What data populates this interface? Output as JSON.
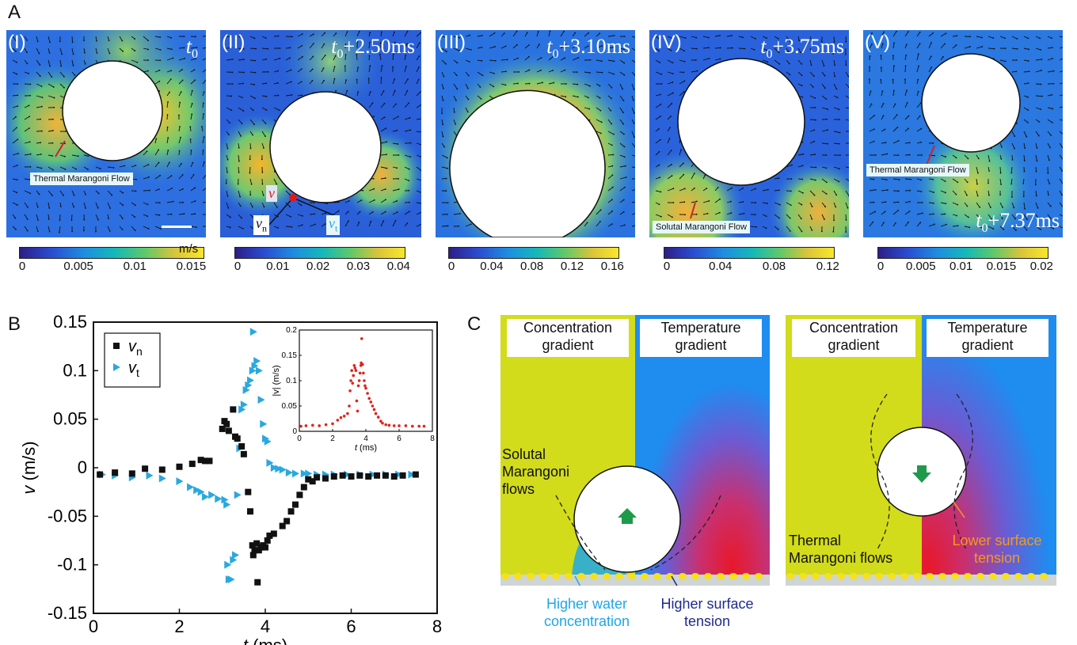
{
  "panel_labels": {
    "a": "A",
    "b": "B",
    "c": "C"
  },
  "panel_a": {
    "frames": [
      {
        "roman": "(I)",
        "time_base": "t",
        "time_sub": "0",
        "time_suffix": ""
      },
      {
        "roman": "(II)",
        "time_base": "t",
        "time_sub": "0",
        "time_suffix": "+2.50ms"
      },
      {
        "roman": "(III)",
        "time_base": "t",
        "time_sub": "0",
        "time_suffix": "+3.10ms"
      },
      {
        "roman": "(IV)",
        "time_base": "t",
        "time_sub": "0",
        "time_suffix": "+3.75ms"
      },
      {
        "roman": "(V)",
        "time_base": "t",
        "time_sub": "0",
        "time_suffix": "+7.37ms"
      }
    ],
    "callouts": {
      "thermal_1": "Thermal Marangoni Flow",
      "solutal": "Solutal Marangoni Flow",
      "thermal_5": "Thermal Marangoni Flow"
    },
    "vector_labels": {
      "v": "v",
      "vn_base": "v",
      "vn_sub": "n",
      "vt_base": "v",
      "vt_sub": "t"
    },
    "colorbar_unit": "m/s",
    "colorbars": [
      {
        "ticks": [
          "0",
          "0.005",
          "0.01",
          "0.015"
        ]
      },
      {
        "ticks": [
          "0",
          "0.01",
          "0.02",
          "0.03",
          "0.04"
        ]
      },
      {
        "ticks": [
          "0",
          "0.04",
          "0.08",
          "0.12",
          "0.16"
        ]
      },
      {
        "ticks": [
          "0",
          "0.04",
          "0.08",
          "0.12"
        ]
      },
      {
        "ticks": [
          "0",
          "0.005",
          "0.01",
          "0.015",
          "0.02"
        ]
      }
    ]
  },
  "panel_b": {
    "xlabel_var": "t",
    "xlabel_unit": " (ms)",
    "ylabel_var": "v",
    "ylabel_unit": " (m/s)",
    "legend": [
      {
        "base": "v",
        "sub": "n"
      },
      {
        "base": "v",
        "sub": "t"
      }
    ],
    "inset": {
      "xlabel_var": "t",
      "xlabel_unit": " (ms)",
      "ylabel": "|v| (m/s)"
    }
  },
  "panel_c": {
    "left": {
      "header_left": [
        "Concentration",
        "gradient"
      ],
      "header_right": [
        "Temperature",
        "gradient"
      ],
      "flow_label": [
        "Solutal",
        "Marangoni",
        "flows"
      ],
      "bottom_left": [
        "Higher water",
        "concentration"
      ],
      "bottom_right": [
        "Higher surface",
        "tension"
      ]
    },
    "right": {
      "header_left": [
        "Concentration",
        "gradient"
      ],
      "header_right": [
        "Temperature",
        "gradient"
      ],
      "flow_label": [
        "Thermal",
        "Marangoni flows"
      ],
      "tension_label": [
        "Lower surface",
        "tension"
      ]
    }
  },
  "colors": {
    "vn_marker": "#111111",
    "vt_marker": "#29a8e0",
    "inset_marker": "#e0231c",
    "c_yellow": "#d2dc1a",
    "c_blue": "#1f8cf0",
    "c_hot": "#e01a2a",
    "light_blue_text": "#1fa6e6",
    "dark_blue_text": "#1e2a8c",
    "orange_text": "#f39a1e",
    "arrow_green": "#1e9a4a"
  },
  "chart_data": [
    {
      "type": "scatter",
      "title": "",
      "xlabel": "t (ms)",
      "ylabel": "v (m/s)",
      "xlim": [
        0,
        8
      ],
      "ylim": [
        -0.15,
        0.15
      ],
      "xticks": [
        0,
        2,
        4,
        6,
        8
      ],
      "yticks": [
        -0.15,
        -0.1,
        -0.05,
        0,
        0.05,
        0.1,
        0.15
      ],
      "ytick_labels": [
        "-0.15",
        "-0.1",
        "-0.05",
        "0",
        "0.05",
        "0.1",
        "0.15"
      ],
      "legend_position": "top-left",
      "series": [
        {
          "name": "vn",
          "marker": "square",
          "points": [
            [
              0.15,
              -0.007
            ],
            [
              0.5,
              -0.005
            ],
            [
              0.9,
              -0.006
            ],
            [
              1.2,
              -0.001
            ],
            [
              1.6,
              -0.002
            ],
            [
              2.0,
              0.001
            ],
            [
              2.3,
              0.004
            ],
            [
              2.5,
              0.008
            ],
            [
              2.6,
              0.007
            ],
            [
              2.7,
              0.007
            ],
            [
              3.0,
              0.04
            ],
            [
              3.05,
              0.048
            ],
            [
              3.1,
              0.045
            ],
            [
              3.15,
              0.038
            ],
            [
              3.25,
              0.06
            ],
            [
              3.3,
              0.032
            ],
            [
              3.35,
              0.03
            ],
            [
              3.45,
              0.022
            ],
            [
              3.5,
              0.014
            ],
            [
              3.6,
              -0.025
            ],
            [
              3.65,
              -0.045
            ],
            [
              3.7,
              -0.08
            ],
            [
              3.72,
              -0.09
            ],
            [
              3.75,
              -0.085
            ],
            [
              3.8,
              -0.078
            ],
            [
              3.82,
              -0.118
            ],
            [
              3.85,
              -0.085
            ],
            [
              3.9,
              -0.082
            ],
            [
              3.95,
              -0.08
            ],
            [
              4.0,
              -0.082
            ],
            [
              4.05,
              -0.075
            ],
            [
              4.1,
              -0.07
            ],
            [
              4.2,
              -0.068
            ],
            [
              4.4,
              -0.06
            ],
            [
              4.5,
              -0.055
            ],
            [
              4.6,
              -0.045
            ],
            [
              4.7,
              -0.038
            ],
            [
              4.8,
              -0.028
            ],
            [
              4.9,
              -0.02
            ],
            [
              5.0,
              -0.012
            ],
            [
              5.1,
              -0.014
            ],
            [
              5.2,
              -0.01
            ],
            [
              5.4,
              -0.011
            ],
            [
              5.6,
              -0.009
            ],
            [
              5.8,
              -0.008
            ],
            [
              6.0,
              -0.009
            ],
            [
              6.2,
              -0.008
            ],
            [
              6.4,
              -0.009
            ],
            [
              6.6,
              -0.008
            ],
            [
              6.8,
              -0.008
            ],
            [
              7.0,
              -0.009
            ],
            [
              7.2,
              -0.008
            ],
            [
              7.5,
              -0.007
            ]
          ]
        },
        {
          "name": "vt",
          "marker": "triangle-right",
          "points": [
            [
              0.2,
              -0.007
            ],
            [
              0.5,
              -0.008
            ],
            [
              0.9,
              -0.01
            ],
            [
              1.3,
              -0.008
            ],
            [
              1.6,
              -0.011
            ],
            [
              2.0,
              -0.014
            ],
            [
              2.25,
              -0.02
            ],
            [
              2.4,
              -0.023
            ],
            [
              2.5,
              -0.025
            ],
            [
              2.6,
              -0.03
            ],
            [
              2.75,
              -0.028
            ],
            [
              2.9,
              -0.032
            ],
            [
              3.05,
              -0.033
            ],
            [
              3.1,
              -0.038
            ],
            [
              3.12,
              -0.1
            ],
            [
              3.15,
              -0.115
            ],
            [
              3.2,
              -0.115
            ],
            [
              3.25,
              -0.095
            ],
            [
              3.3,
              -0.09
            ],
            [
              3.35,
              -0.028
            ],
            [
              3.4,
              0.02
            ],
            [
              3.45,
              0.06
            ],
            [
              3.5,
              0.065
            ],
            [
              3.55,
              0.08
            ],
            [
              3.6,
              0.085
            ],
            [
              3.65,
              0.09
            ],
            [
              3.7,
              0.1
            ],
            [
              3.72,
              0.14
            ],
            [
              3.75,
              0.105
            ],
            [
              3.8,
              0.11
            ],
            [
              3.85,
              0.1
            ],
            [
              3.9,
              0.07
            ],
            [
              3.95,
              0.045
            ],
            [
              4.0,
              0.03
            ],
            [
              4.05,
              0.027
            ],
            [
              4.1,
              0.005
            ],
            [
              4.2,
              0.0
            ],
            [
              4.3,
              -0.001
            ],
            [
              4.4,
              -0.002
            ],
            [
              4.55,
              -0.005
            ],
            [
              4.7,
              -0.006
            ],
            [
              4.9,
              -0.006
            ],
            [
              5.0,
              -0.006
            ],
            [
              5.2,
              -0.007
            ],
            [
              5.4,
              -0.007
            ],
            [
              5.6,
              -0.007
            ],
            [
              5.9,
              -0.007
            ],
            [
              6.2,
              -0.007
            ],
            [
              6.5,
              -0.007
            ],
            [
              6.8,
              -0.007
            ],
            [
              7.1,
              -0.007
            ],
            [
              7.4,
              -0.007
            ]
          ]
        }
      ]
    },
    {
      "type": "scatter",
      "title": "",
      "xlabel": "t (ms)",
      "ylabel": "|v| (m/s)",
      "xlim": [
        0,
        8
      ],
      "ylim": [
        0,
        0.2
      ],
      "xticks": [
        0,
        2,
        4,
        6,
        8
      ],
      "yticks": [
        0,
        0.05,
        0.1,
        0.15,
        0.2
      ],
      "ytick_labels": [
        "0",
        "0.05",
        "0.1",
        "0.15",
        "0.2"
      ],
      "series": [
        {
          "name": "|v|",
          "marker": "dot",
          "points": [
            [
              0.1,
              0.01
            ],
            [
              0.4,
              0.011
            ],
            [
              0.8,
              0.012
            ],
            [
              1.2,
              0.011
            ],
            [
              1.6,
              0.013
            ],
            [
              2.0,
              0.015
            ],
            [
              2.3,
              0.022
            ],
            [
              2.5,
              0.027
            ],
            [
              2.7,
              0.03
            ],
            [
              2.9,
              0.035
            ],
            [
              3.0,
              0.05
            ],
            [
              3.05,
              0.08
            ],
            [
              3.1,
              0.1
            ],
            [
              3.15,
              0.12
            ],
            [
              3.2,
              0.095
            ],
            [
              3.25,
              0.11
            ],
            [
              3.3,
              0.13
            ],
            [
              3.35,
              0.125
            ],
            [
              3.4,
              0.12
            ],
            [
              3.45,
              0.06
            ],
            [
              3.5,
              0.04
            ],
            [
              3.55,
              0.09
            ],
            [
              3.6,
              0.1
            ],
            [
              3.65,
              0.115
            ],
            [
              3.7,
              0.13
            ],
            [
              3.72,
              0.135
            ],
            [
              3.75,
              0.183
            ],
            [
              3.8,
              0.132
            ],
            [
              3.85,
              0.115
            ],
            [
              3.9,
              0.1
            ],
            [
              3.95,
              0.09
            ],
            [
              4.0,
              0.085
            ],
            [
              4.1,
              0.075
            ],
            [
              4.2,
              0.065
            ],
            [
              4.3,
              0.058
            ],
            [
              4.4,
              0.05
            ],
            [
              4.5,
              0.043
            ],
            [
              4.6,
              0.035
            ],
            [
              4.75,
              0.028
            ],
            [
              4.9,
              0.02
            ],
            [
              5.0,
              0.016
            ],
            [
              5.2,
              0.013
            ],
            [
              5.4,
              0.012
            ],
            [
              5.7,
              0.011
            ],
            [
              6.0,
              0.011
            ],
            [
              6.4,
              0.011
            ],
            [
              6.8,
              0.01
            ],
            [
              7.2,
              0.01
            ],
            [
              7.5,
              0.01
            ]
          ]
        }
      ]
    }
  ]
}
